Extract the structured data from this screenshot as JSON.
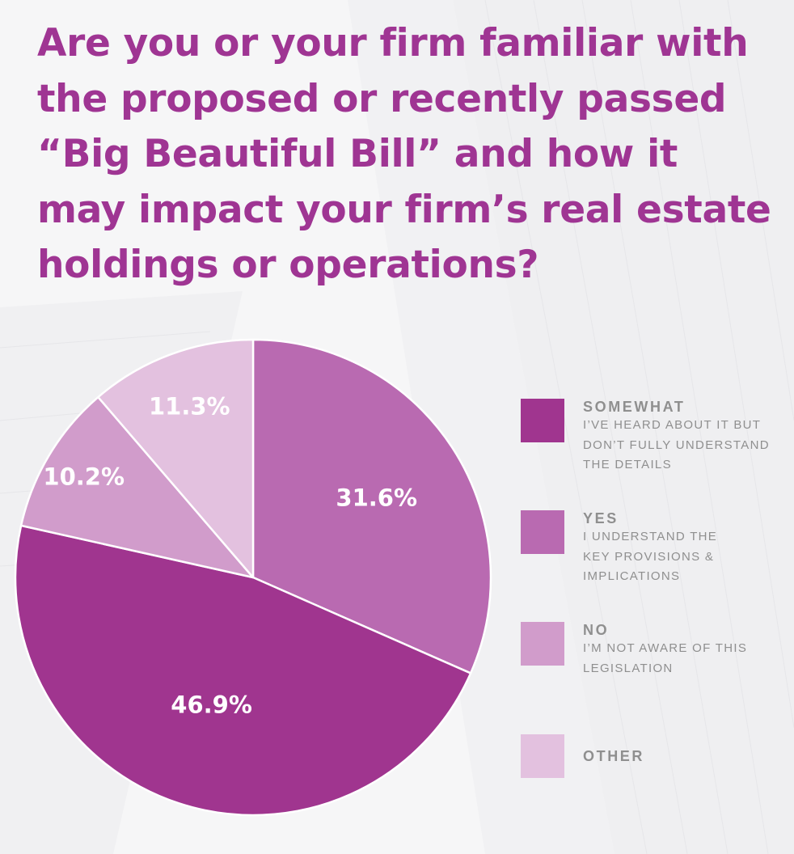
{
  "title_lines": [
    "Are you or your firm familiar with",
    "the proposed or recently passed",
    "“Big Beautiful Bill” and how it",
    "may impact your firm’s real estate",
    "holdings or operations?"
  ],
  "colors": {
    "title": "#9f3593",
    "legend_text": "#8f8f8f",
    "slice_label": "#ffffff",
    "background": "#f6f6f7"
  },
  "legend": [
    {
      "head": "SOMEWHAT",
      "lines": [
        "I’VE HEARD ABOUT IT BUT",
        "DON’T FULLY UNDERSTAND",
        "THE DETAILS"
      ],
      "color": "#a0358f"
    },
    {
      "head": "YES",
      "lines": [
        "I UNDERSTAND THE",
        "KEY PROVISIONS &",
        "IMPLICATIONS"
      ],
      "color": "#b96ab1"
    },
    {
      "head": "NO",
      "lines": [
        "I’M NOT AWARE OF THIS",
        "LEGISLATION"
      ],
      "color": "#d19ccb"
    },
    {
      "head": "OTHER",
      "lines": [],
      "color": "#e3c1df"
    }
  ],
  "chart_data": {
    "type": "pie",
    "title": "Are you or your firm familiar with the proposed or recently passed “Big Beautiful Bill” and how it may impact your firm’s real estate holdings or operations?",
    "start": "12 o'clock, clockwise",
    "slices": [
      {
        "category": "YES",
        "value": 31.6,
        "label": "31.6%",
        "color": "#b96ab1"
      },
      {
        "category": "SOMEWHAT",
        "value": 46.9,
        "label": "46.9%",
        "color": "#a0358f"
      },
      {
        "category": "NO",
        "value": 10.2,
        "label": "10.2%",
        "color": "#d19ccb"
      },
      {
        "category": "OTHER",
        "value": 11.3,
        "label": "11.3%",
        "color": "#e3c1df"
      }
    ],
    "legend_position": "right",
    "slice_border": "#ffffff"
  }
}
